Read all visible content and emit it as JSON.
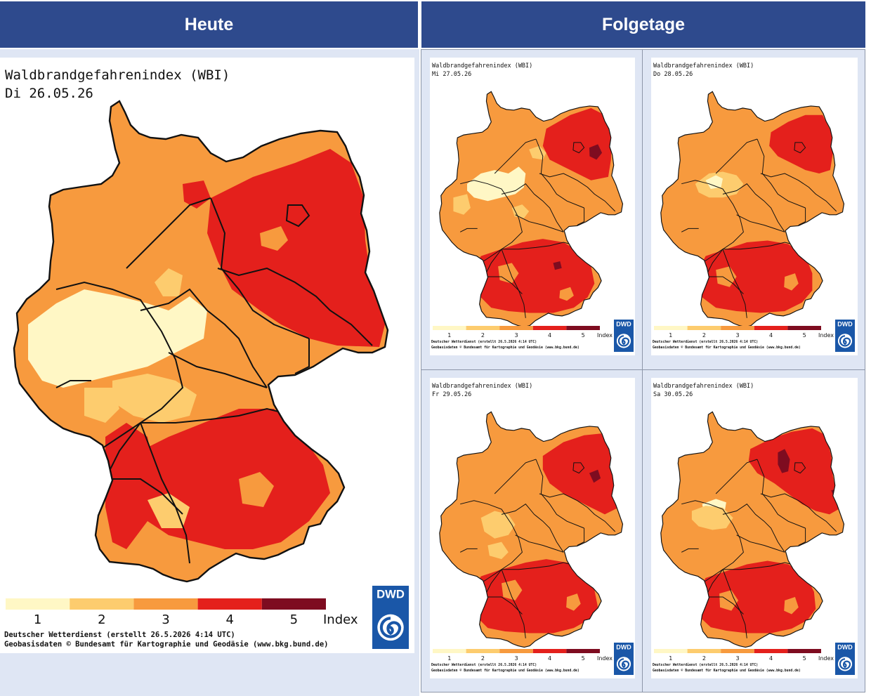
{
  "headers": {
    "left": "Heute",
    "right": "Folgetage"
  },
  "legend": {
    "ticks": [
      "1",
      "2",
      "3",
      "4",
      "5"
    ],
    "unit": "Index",
    "colors": [
      "#fff7c5",
      "#fdcc6e",
      "#f79a3e",
      "#e4201c",
      "#7e0c20"
    ]
  },
  "colors": {
    "header": "#2e4a8d",
    "panel": "#dfe6f4",
    "dwd": "#1a57a8"
  },
  "footer": {
    "line1": "Deutscher Wetterdienst (erstellt 26.5.2026 4:14 UTC)",
    "line2": "Geobasisdaten © Bundesamt für Kartographie und Geodäsie (www.bkg.bund.de)"
  },
  "logo": {
    "text": "DWD",
    "icon": "dwd-spiral-icon"
  },
  "maps": {
    "today": {
      "title": "Waldbrandgefahrenindex (WBI)",
      "date": "Di 26.05.26"
    },
    "d1": {
      "title": "Waldbrandgefahrenindex (WBI)",
      "date": "Mi 27.05.26"
    },
    "d2": {
      "title": "Waldbrandgefahrenindex (WBI)",
      "date": "Do 28.05.26"
    },
    "d3": {
      "title": "Waldbrandgefahrenindex (WBI)",
      "date": "Fr 29.05.26"
    },
    "d4": {
      "title": "Waldbrandgefahrenindex (WBI)",
      "date": "Sa 30.05.26"
    }
  }
}
